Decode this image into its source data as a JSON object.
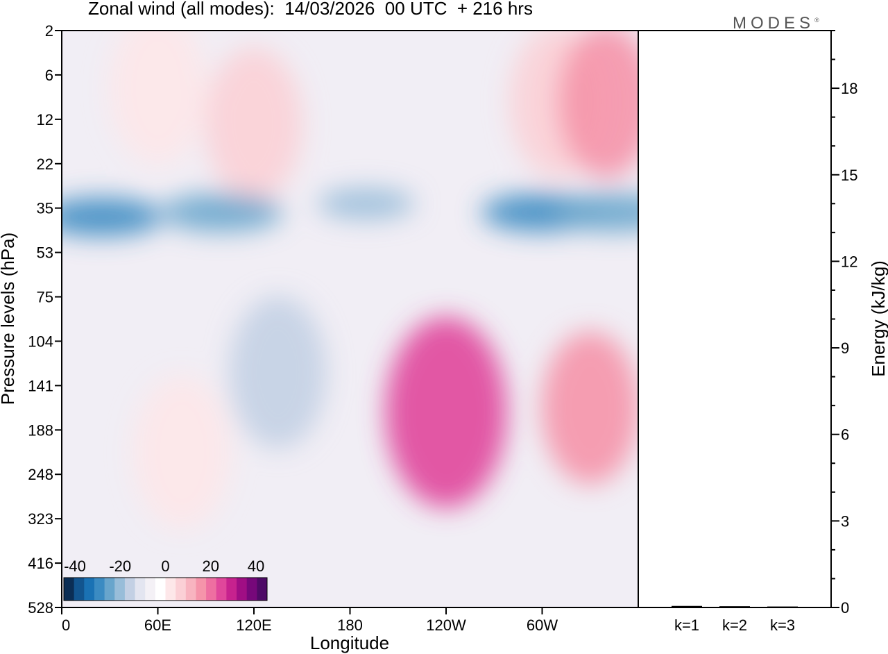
{
  "chart_data": [
    {
      "type": "heatmap",
      "title": "Zonal wind (all modes):  14/03/2026  00 UTC  + 216 hrs",
      "xlabel": "Longitude",
      "ylabel": "Pressure levels (hPa)",
      "x_ticks": [
        "0",
        "60E",
        "120E",
        "180",
        "120W",
        "60W"
      ],
      "y_ticks": [
        "2",
        "6",
        "12",
        "22",
        "35",
        "53",
        "75",
        "104",
        "141",
        "188",
        "248",
        "323",
        "416",
        "528"
      ],
      "colorbar": {
        "labels": [
          "-40",
          "-20",
          "0",
          "20",
          "40"
        ],
        "colors": [
          "#0b2e55",
          "#12558f",
          "#1a72b4",
          "#3b8bc2",
          "#68a5cc",
          "#98bdd9",
          "#c3d0e4",
          "#e3e5f0",
          "#f4f1f6",
          "#ffffff",
          "#fde7e9",
          "#fbd0d6",
          "#f8b4c0",
          "#f594aa",
          "#ee6fa1",
          "#e0479b",
          "#c7228e",
          "#a00e84",
          "#76087a",
          "#4e0a66"
        ]
      },
      "features": [
        {
          "kind": "blob",
          "lon": 120,
          "p_index": 2.1,
          "value": 10
        },
        {
          "kind": "blob",
          "lon": 60,
          "p_index": 1.3,
          "value": 6
        },
        {
          "kind": "blob",
          "lon": 310,
          "p_index": 1.6,
          "value": 10
        },
        {
          "kind": "blob",
          "lon": 340,
          "p_index": 1.6,
          "value": 20
        },
        {
          "kind": "blob",
          "lon": 25,
          "p_index": 4.2,
          "value": -26
        },
        {
          "kind": "blob",
          "lon": 100,
          "p_index": 4.1,
          "value": -24
        },
        {
          "kind": "blob",
          "lon": 300,
          "p_index": 4.1,
          "value": -28
        },
        {
          "kind": "blob",
          "lon": 345,
          "p_index": 4.1,
          "value": -24
        },
        {
          "kind": "blob",
          "lon": 190,
          "p_index": 3.9,
          "value": -18
        },
        {
          "kind": "blob",
          "lon": 240,
          "p_index": 8.6,
          "value": 30
        },
        {
          "kind": "blob",
          "lon": 330,
          "p_index": 8.5,
          "value": 20
        },
        {
          "kind": "blob",
          "lon": 75,
          "p_index": 9.5,
          "value": 8
        },
        {
          "kind": "blob",
          "lon": 135,
          "p_index": 7.7,
          "value": -14
        }
      ]
    },
    {
      "type": "bar",
      "categories": [
        "k=1",
        "k=2",
        "k=3"
      ],
      "values": [
        0.03,
        0.02,
        0.01
      ],
      "ylabel": "Energy (kJ/kg)",
      "ylim": [
        0,
        20
      ],
      "y_ticks": [
        "0",
        "3",
        "6",
        "9",
        "12",
        "15",
        "18"
      ]
    }
  ],
  "brand": {
    "name": "MODES",
    "mark": "®"
  }
}
